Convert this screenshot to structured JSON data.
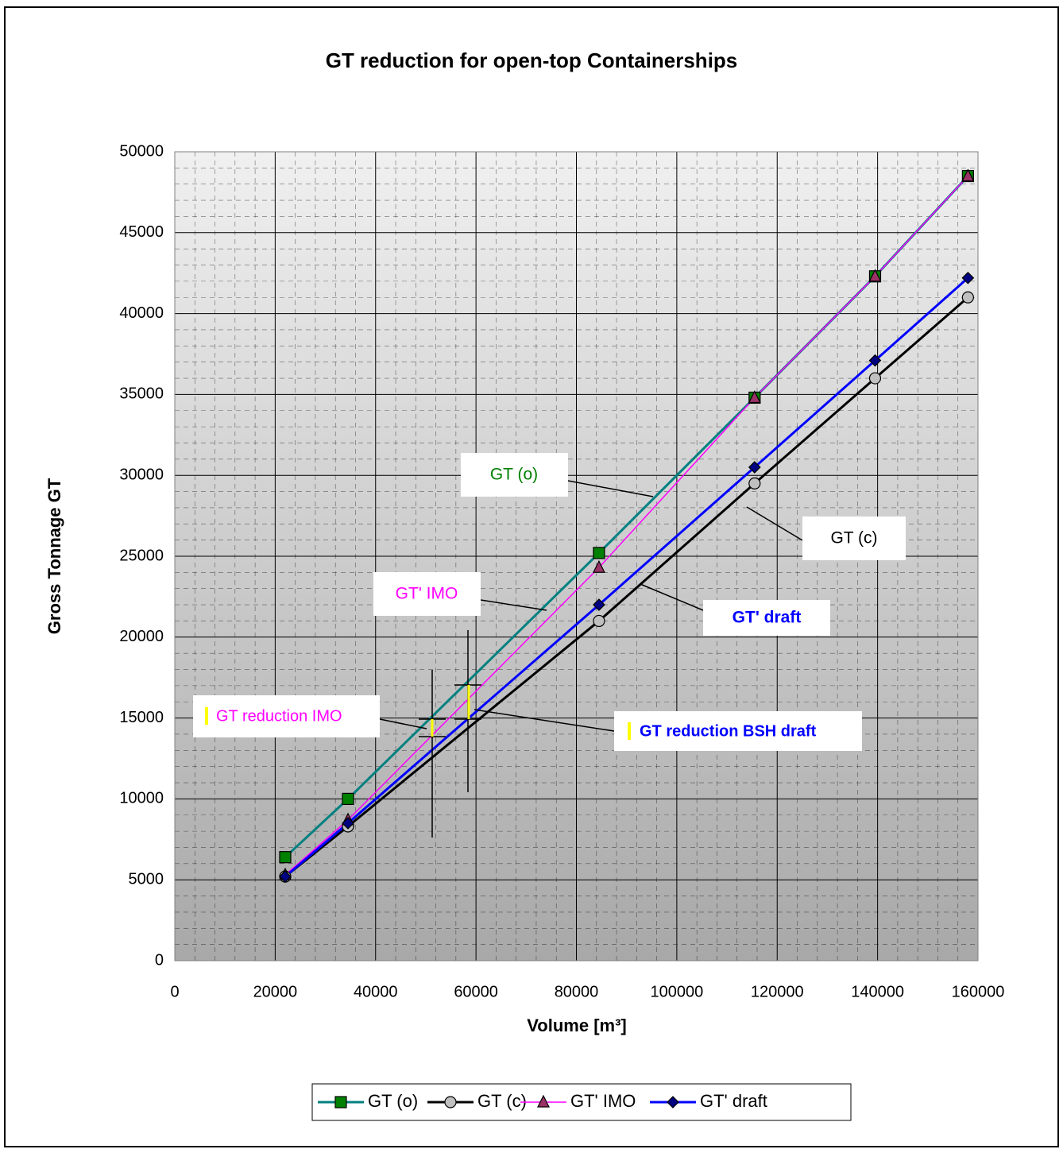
{
  "chart_data": {
    "type": "line",
    "title": "GT reduction for open-top Containerships",
    "x_label": "Volume  [m³]",
    "y_label": "Gross Tonnage  GT",
    "x": [
      22000,
      34500,
      84500,
      115500,
      139500,
      158000
    ],
    "xlim": [
      0,
      160000
    ],
    "xticks": [
      0,
      20000,
      40000,
      60000,
      80000,
      100000,
      120000,
      140000,
      160000
    ],
    "ylim": [
      0,
      50000
    ],
    "yticks": [
      0,
      5000,
      10000,
      15000,
      20000,
      25000,
      30000,
      35000,
      40000,
      45000,
      50000
    ],
    "grid": true,
    "legend": "bottom",
    "series": [
      {
        "name": "GT (o)",
        "color": "#008080",
        "marker": "square",
        "marker_color": "#008000",
        "values": [
          6400,
          10000,
          25200,
          34800,
          42300,
          48500
        ]
      },
      {
        "name": "GT (c)",
        "color": "#000000",
        "marker": "circle",
        "marker_color": "#c0c0c0",
        "values": [
          5200,
          8300,
          21000,
          29500,
          36000,
          41000
        ]
      },
      {
        "name": "GT' IMO",
        "color": "#ff00ff",
        "marker": "triangle",
        "marker_color": "#993366",
        "values": [
          5300,
          8700,
          24300,
          34800,
          42300,
          48500
        ]
      },
      {
        "name": "GT' draft",
        "color": "#0000ff",
        "marker": "diamond",
        "marker_color": "#000080",
        "values": [
          5200,
          8500,
          22000,
          30500,
          37100,
          42200
        ]
      }
    ],
    "annotations": [
      "GT (o)",
      "GT (c)",
      "GT' IMO",
      "GT' draft",
      "GT reduction IMO",
      "GT reduction BSH draft"
    ]
  }
}
